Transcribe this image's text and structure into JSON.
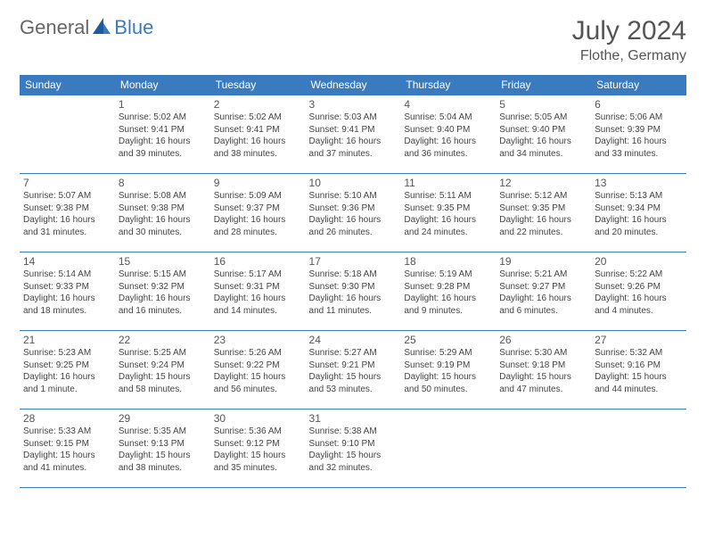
{
  "logo": {
    "general": "General",
    "blue": "Blue"
  },
  "title": "July 2024",
  "location": "Flothe, Germany",
  "colors": {
    "header_bg": "#3a7bbf",
    "header_text": "#ffffff",
    "border": "#3a7bbf",
    "body_text": "#444444",
    "title_text": "#555555",
    "background": "#ffffff"
  },
  "daynames": [
    "Sunday",
    "Monday",
    "Tuesday",
    "Wednesday",
    "Thursday",
    "Friday",
    "Saturday"
  ],
  "weeks": [
    [
      null,
      {
        "n": "1",
        "sr": "Sunrise: 5:02 AM",
        "ss": "Sunset: 9:41 PM",
        "dl": "Daylight: 16 hours and 39 minutes."
      },
      {
        "n": "2",
        "sr": "Sunrise: 5:02 AM",
        "ss": "Sunset: 9:41 PM",
        "dl": "Daylight: 16 hours and 38 minutes."
      },
      {
        "n": "3",
        "sr": "Sunrise: 5:03 AM",
        "ss": "Sunset: 9:41 PM",
        "dl": "Daylight: 16 hours and 37 minutes."
      },
      {
        "n": "4",
        "sr": "Sunrise: 5:04 AM",
        "ss": "Sunset: 9:40 PM",
        "dl": "Daylight: 16 hours and 36 minutes."
      },
      {
        "n": "5",
        "sr": "Sunrise: 5:05 AM",
        "ss": "Sunset: 9:40 PM",
        "dl": "Daylight: 16 hours and 34 minutes."
      },
      {
        "n": "6",
        "sr": "Sunrise: 5:06 AM",
        "ss": "Sunset: 9:39 PM",
        "dl": "Daylight: 16 hours and 33 minutes."
      }
    ],
    [
      {
        "n": "7",
        "sr": "Sunrise: 5:07 AM",
        "ss": "Sunset: 9:38 PM",
        "dl": "Daylight: 16 hours and 31 minutes."
      },
      {
        "n": "8",
        "sr": "Sunrise: 5:08 AM",
        "ss": "Sunset: 9:38 PM",
        "dl": "Daylight: 16 hours and 30 minutes."
      },
      {
        "n": "9",
        "sr": "Sunrise: 5:09 AM",
        "ss": "Sunset: 9:37 PM",
        "dl": "Daylight: 16 hours and 28 minutes."
      },
      {
        "n": "10",
        "sr": "Sunrise: 5:10 AM",
        "ss": "Sunset: 9:36 PM",
        "dl": "Daylight: 16 hours and 26 minutes."
      },
      {
        "n": "11",
        "sr": "Sunrise: 5:11 AM",
        "ss": "Sunset: 9:35 PM",
        "dl": "Daylight: 16 hours and 24 minutes."
      },
      {
        "n": "12",
        "sr": "Sunrise: 5:12 AM",
        "ss": "Sunset: 9:35 PM",
        "dl": "Daylight: 16 hours and 22 minutes."
      },
      {
        "n": "13",
        "sr": "Sunrise: 5:13 AM",
        "ss": "Sunset: 9:34 PM",
        "dl": "Daylight: 16 hours and 20 minutes."
      }
    ],
    [
      {
        "n": "14",
        "sr": "Sunrise: 5:14 AM",
        "ss": "Sunset: 9:33 PM",
        "dl": "Daylight: 16 hours and 18 minutes."
      },
      {
        "n": "15",
        "sr": "Sunrise: 5:15 AM",
        "ss": "Sunset: 9:32 PM",
        "dl": "Daylight: 16 hours and 16 minutes."
      },
      {
        "n": "16",
        "sr": "Sunrise: 5:17 AM",
        "ss": "Sunset: 9:31 PM",
        "dl": "Daylight: 16 hours and 14 minutes."
      },
      {
        "n": "17",
        "sr": "Sunrise: 5:18 AM",
        "ss": "Sunset: 9:30 PM",
        "dl": "Daylight: 16 hours and 11 minutes."
      },
      {
        "n": "18",
        "sr": "Sunrise: 5:19 AM",
        "ss": "Sunset: 9:28 PM",
        "dl": "Daylight: 16 hours and 9 minutes."
      },
      {
        "n": "19",
        "sr": "Sunrise: 5:21 AM",
        "ss": "Sunset: 9:27 PM",
        "dl": "Daylight: 16 hours and 6 minutes."
      },
      {
        "n": "20",
        "sr": "Sunrise: 5:22 AM",
        "ss": "Sunset: 9:26 PM",
        "dl": "Daylight: 16 hours and 4 minutes."
      }
    ],
    [
      {
        "n": "21",
        "sr": "Sunrise: 5:23 AM",
        "ss": "Sunset: 9:25 PM",
        "dl": "Daylight: 16 hours and 1 minute."
      },
      {
        "n": "22",
        "sr": "Sunrise: 5:25 AM",
        "ss": "Sunset: 9:24 PM",
        "dl": "Daylight: 15 hours and 58 minutes."
      },
      {
        "n": "23",
        "sr": "Sunrise: 5:26 AM",
        "ss": "Sunset: 9:22 PM",
        "dl": "Daylight: 15 hours and 56 minutes."
      },
      {
        "n": "24",
        "sr": "Sunrise: 5:27 AM",
        "ss": "Sunset: 9:21 PM",
        "dl": "Daylight: 15 hours and 53 minutes."
      },
      {
        "n": "25",
        "sr": "Sunrise: 5:29 AM",
        "ss": "Sunset: 9:19 PM",
        "dl": "Daylight: 15 hours and 50 minutes."
      },
      {
        "n": "26",
        "sr": "Sunrise: 5:30 AM",
        "ss": "Sunset: 9:18 PM",
        "dl": "Daylight: 15 hours and 47 minutes."
      },
      {
        "n": "27",
        "sr": "Sunrise: 5:32 AM",
        "ss": "Sunset: 9:16 PM",
        "dl": "Daylight: 15 hours and 44 minutes."
      }
    ],
    [
      {
        "n": "28",
        "sr": "Sunrise: 5:33 AM",
        "ss": "Sunset: 9:15 PM",
        "dl": "Daylight: 15 hours and 41 minutes."
      },
      {
        "n": "29",
        "sr": "Sunrise: 5:35 AM",
        "ss": "Sunset: 9:13 PM",
        "dl": "Daylight: 15 hours and 38 minutes."
      },
      {
        "n": "30",
        "sr": "Sunrise: 5:36 AM",
        "ss": "Sunset: 9:12 PM",
        "dl": "Daylight: 15 hours and 35 minutes."
      },
      {
        "n": "31",
        "sr": "Sunrise: 5:38 AM",
        "ss": "Sunset: 9:10 PM",
        "dl": "Daylight: 15 hours and 32 minutes."
      },
      null,
      null,
      null
    ]
  ]
}
